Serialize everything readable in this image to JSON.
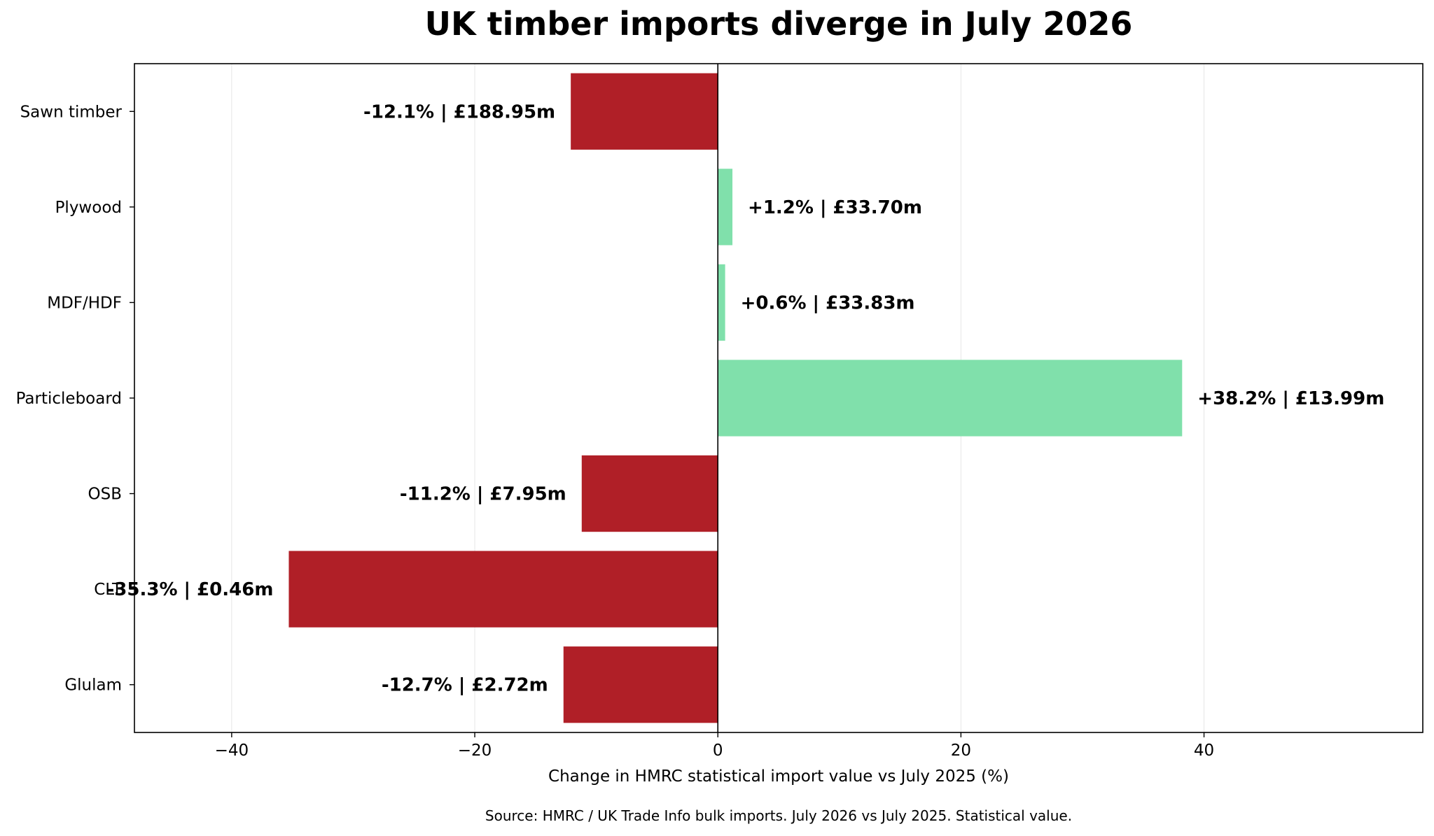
{
  "chart_data": {
    "type": "bar",
    "orientation": "horizontal",
    "title": "UK timber imports diverge in July 2026",
    "xlabel": "Change in HMRC statistical import value vs July 2025 (%)",
    "ylabel": "",
    "source": "Source: HMRC / UK Trade Info bulk imports. July 2026 vs July 2025. Statistical value.",
    "xlim": [
      -48,
      58
    ],
    "xticks": [
      -40,
      -20,
      0,
      20,
      40
    ],
    "xtick_labels": [
      "−40",
      "−20",
      "0",
      "20",
      "40"
    ],
    "grid": "vertical",
    "categories": [
      "Sawn timber",
      "Plywood",
      "MDF/HDF",
      "Particleboard",
      "OSB",
      "CLT",
      "Glulam"
    ],
    "values": [
      -12.1,
      1.2,
      0.6,
      38.2,
      -11.2,
      -35.3,
      -12.7
    ],
    "value_labels": [
      "-12.1%  |  £188.95m",
      "+1.2%  |  £33.70m",
      "+0.6%  |  £33.83m",
      "+38.2%  |  £13.99m",
      "-11.2%  |  £7.95m",
      "-35.3%  |  £0.46m",
      "-12.7%  |  £2.72m"
    ],
    "colors": {
      "negative": "#b01f27",
      "positive": "#80e0ab",
      "grid": "#e6e6e6",
      "axis": "#000000"
    }
  }
}
